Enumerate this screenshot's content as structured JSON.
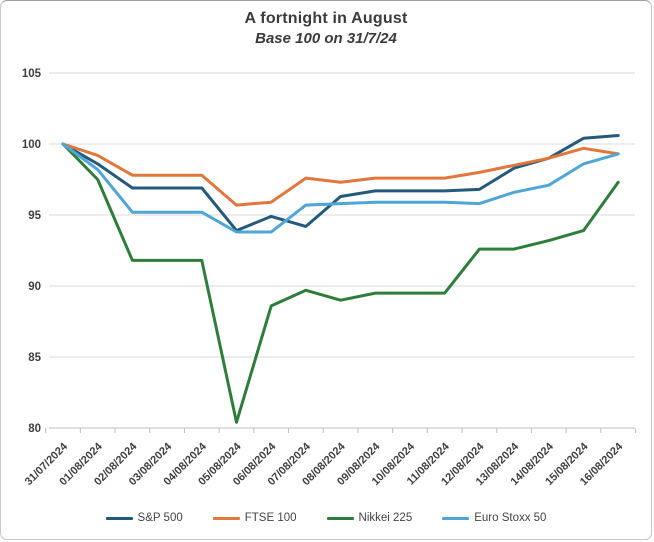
{
  "frame": {
    "title": "A fortnight in August",
    "subtitle": "Base 100 on 31/7/24"
  },
  "chart_data": {
    "type": "line",
    "title": "A fortnight in August",
    "subtitle": "Base 100 on 31/7/24",
    "x_labels": [
      "31/07/2024",
      "01/08/2024",
      "02/08/2024",
      "03/08/2024",
      "04/08/2024",
      "05/08/2024",
      "06/08/2024",
      "07/08/2024",
      "08/08/2024",
      "09/08/2024",
      "10/08/2024",
      "11/08/2024",
      "12/08/2024",
      "13/08/2024",
      "14/08/2024",
      "15/08/2024",
      "16/08/2024"
    ],
    "ylim": [
      80,
      105
    ],
    "yticks": [
      80,
      85,
      90,
      95,
      100,
      105
    ],
    "grid": "horizontal",
    "legend_position": "bottom",
    "series": [
      {
        "name": "S&P 500",
        "color": "#235A7C",
        "values": [
          100,
          98.6,
          96.9,
          96.9,
          96.9,
          93.9,
          94.9,
          94.2,
          96.3,
          96.7,
          96.7,
          96.7,
          96.8,
          98.3,
          99.0,
          100.4,
          100.6
        ]
      },
      {
        "name": "FTSE 100",
        "color": "#E2773B",
        "values": [
          100,
          99.2,
          97.8,
          97.8,
          97.8,
          95.7,
          95.9,
          97.6,
          97.3,
          97.6,
          97.6,
          97.6,
          98.0,
          98.5,
          99.0,
          99.7,
          99.3
        ]
      },
      {
        "name": "Nikkei 225",
        "color": "#2E7D3B",
        "values": [
          100,
          97.5,
          91.8,
          91.8,
          91.8,
          80.4,
          88.6,
          89.7,
          89.0,
          89.5,
          89.5,
          89.5,
          92.6,
          92.6,
          93.2,
          93.9,
          97.3
        ]
      },
      {
        "name": "Euro Stoxx 50",
        "color": "#4DA6D6",
        "values": [
          100,
          98.2,
          95.2,
          95.2,
          95.2,
          93.8,
          93.8,
          95.7,
          95.8,
          95.9,
          95.9,
          95.9,
          95.8,
          96.6,
          97.1,
          98.6,
          99.3
        ]
      }
    ]
  }
}
